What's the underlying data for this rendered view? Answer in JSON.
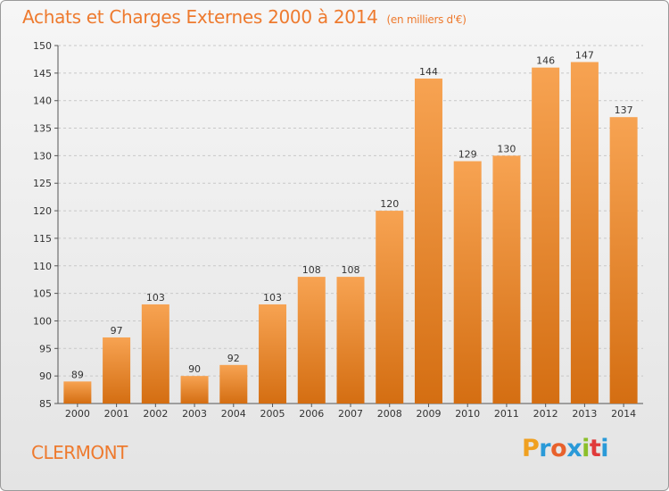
{
  "title": "Achats et Charges Externes 2000 à 2014",
  "subtitle": "(en milliers d'€)",
  "commune": "CLERMONT",
  "logo": {
    "letters": [
      "P",
      "r",
      "o",
      "x",
      "i",
      "t",
      "i"
    ],
    "colors": [
      "#f0a020",
      "#2a9ad8",
      "#e8612c",
      "#2a9ad8",
      "#8bbf2a",
      "#e03a3a",
      "#2a9ad8"
    ]
  },
  "colors": {
    "accent": "#ee7a2e",
    "bar_top": "#f7a352",
    "bar_bottom": "#d46e12"
  },
  "chart_data": {
    "type": "bar",
    "title": "Achats et Charges Externes 2000 à 2014",
    "categories": [
      "2000",
      "2001",
      "2002",
      "2003",
      "2004",
      "2005",
      "2006",
      "2007",
      "2008",
      "2009",
      "2010",
      "2011",
      "2012",
      "2013",
      "2014"
    ],
    "values": [
      89,
      97,
      103,
      90,
      92,
      103,
      108,
      108,
      120,
      144,
      129,
      130,
      146,
      147,
      137
    ],
    "ylim": [
      85,
      150
    ],
    "yticks": [
      85,
      90,
      95,
      100,
      105,
      110,
      115,
      120,
      125,
      130,
      135,
      140,
      145,
      150
    ],
    "grid": true
  }
}
